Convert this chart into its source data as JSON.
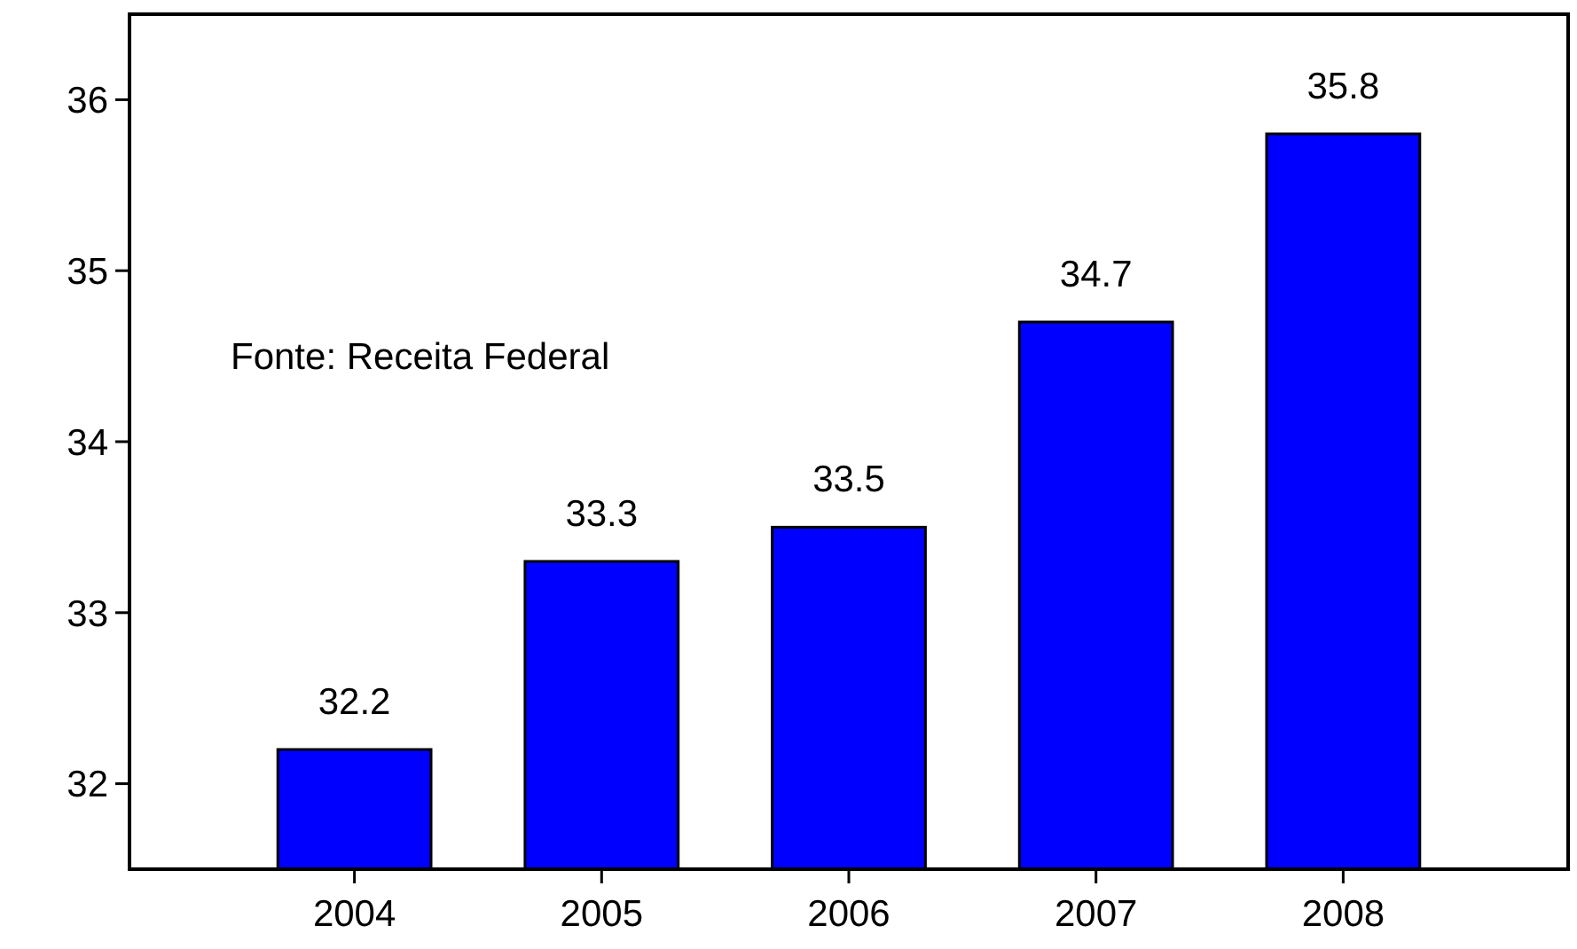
{
  "chart_data": {
    "type": "bar",
    "categories": [
      "2004",
      "2005",
      "2006",
      "2007",
      "2008"
    ],
    "values": [
      32.2,
      33.3,
      33.5,
      34.7,
      35.8
    ],
    "color": "#0000ff",
    "ylim": [
      31.5,
      36.5
    ],
    "yticks": [
      32,
      33,
      34,
      35,
      36
    ],
    "data_labels": true,
    "grid": false,
    "annotations": [
      "Fonte: Receita Federal"
    ]
  }
}
